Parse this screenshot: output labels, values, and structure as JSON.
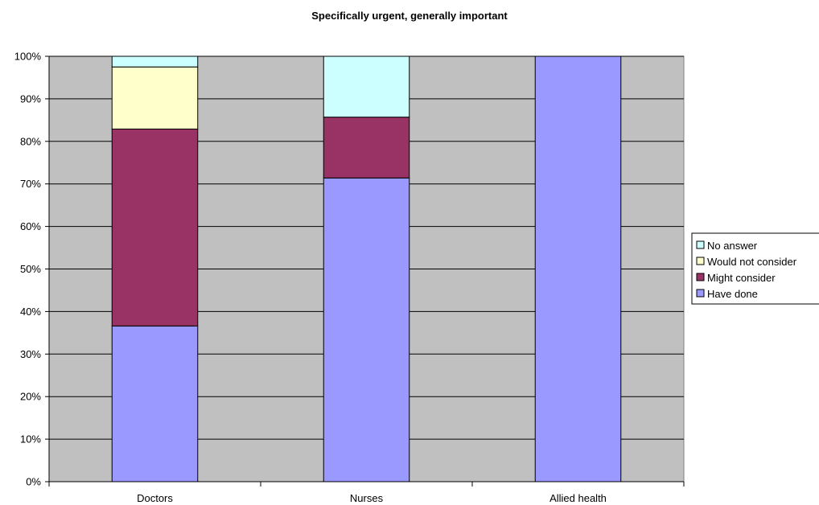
{
  "chart_data": {
    "type": "bar",
    "stacked": true,
    "title": "Specifically urgent, generally important",
    "xlabel": "",
    "ylabel": "",
    "categories": [
      "Doctors",
      "Nurses",
      "Allied health"
    ],
    "series": [
      {
        "name": "Have done",
        "values": [
          36.6,
          71.4,
          100
        ],
        "color": "#9999ff"
      },
      {
        "name": "Might consider",
        "values": [
          46.3,
          14.3,
          0
        ],
        "color": "#993366"
      },
      {
        "name": "Would not consider",
        "values": [
          14.6,
          0,
          0
        ],
        "color": "#ffffcc"
      },
      {
        "name": "No answer",
        "values": [
          2.5,
          14.3,
          0
        ],
        "color": "#ccffff"
      }
    ],
    "ylim": [
      0,
      100
    ],
    "yticks": [
      "0%",
      "10%",
      "20%",
      "30%",
      "40%",
      "50%",
      "60%",
      "70%",
      "80%",
      "90%",
      "100%"
    ],
    "grid": true,
    "legend_position": "right",
    "legend_order": [
      "No answer",
      "Would not consider",
      "Might consider",
      "Have done"
    ],
    "plot_background": "#c0c0c0"
  }
}
